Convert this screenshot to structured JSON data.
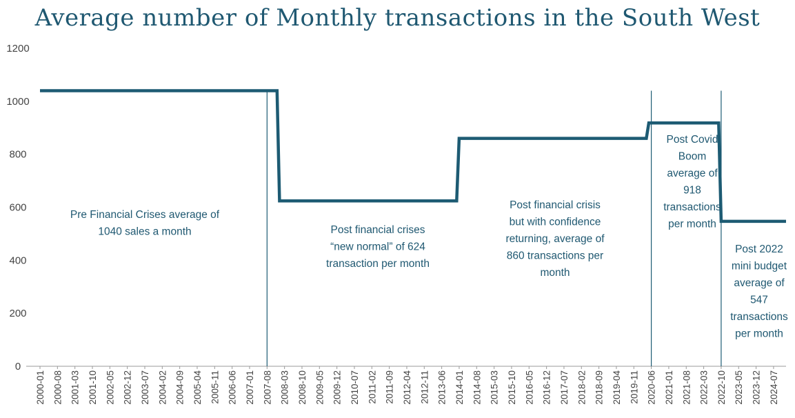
{
  "chart_data": {
    "type": "line",
    "title": "Average number of Monthly transactions in the South West",
    "xlabel": "",
    "ylabel": "",
    "ylim": [
      0,
      1200
    ],
    "yticks": [
      0,
      200,
      400,
      600,
      800,
      1000,
      1200
    ],
    "grid": false,
    "legend": "none",
    "categories": [
      "2000-01",
      "2000-08",
      "2001-03",
      "2001-10",
      "2002-05",
      "2002-12",
      "2003-07",
      "2004-02",
      "2004-09",
      "2005-04",
      "2005-11",
      "2006-06",
      "2007-01",
      "2007-08",
      "2008-03",
      "2008-10",
      "2009-05",
      "2009-12",
      "2010-07",
      "2011-02",
      "2011-09",
      "2012-04",
      "2012-11",
      "2013-06",
      "2014-01",
      "2014-08",
      "2015-03",
      "2015-10",
      "2016-05",
      "2016-12",
      "2017-07",
      "2018-02",
      "2018-09",
      "2019-04",
      "2019-11",
      "2020-06",
      "2021-01",
      "2021-08",
      "2022-03",
      "2022-10",
      "2023-05",
      "2023-12",
      "2024-07"
    ],
    "series": [
      {
        "name": "",
        "color": "#1d5b73",
        "points": [
          {
            "x": "2000-01",
            "y": 1040
          },
          {
            "x": "2007-12",
            "y": 1040
          },
          {
            "x": "2008-01",
            "y": 624
          },
          {
            "x": "2013-12",
            "y": 624
          },
          {
            "x": "2014-01",
            "y": 860
          },
          {
            "x": "2020-04",
            "y": 860
          },
          {
            "x": "2020-05",
            "y": 918
          },
          {
            "x": "2022-09",
            "y": 918
          },
          {
            "x": "2022-10",
            "y": 547
          },
          {
            "x": "2024-12",
            "y": 547
          }
        ]
      }
    ],
    "dividers": [
      "2007-08",
      "2020-06",
      "2022-10"
    ],
    "annotations": [
      {
        "lines": [
          "Pre Financial Crises average of",
          "1040 sales a month"
        ]
      },
      {
        "lines": [
          "Post financial crises",
          "“new normal” of 624",
          "transaction per month"
        ]
      },
      {
        "lines": [
          "Post financial crisis",
          "but with confidence",
          "returning, average of",
          "860 transactions per",
          "month"
        ]
      },
      {
        "lines": [
          "Post Covid",
          "Boom",
          "average of",
          "918",
          "transactions",
          "per month"
        ]
      },
      {
        "lines": [
          "Post 2022",
          "mini budget",
          "average of",
          "547",
          "transactions",
          "per month"
        ]
      }
    ]
  },
  "colors": {
    "line": "#1d5b73",
    "title": "#1f5871",
    "annotation": "#1f5871",
    "axis": "#999999",
    "tick_text": "#444444"
  }
}
